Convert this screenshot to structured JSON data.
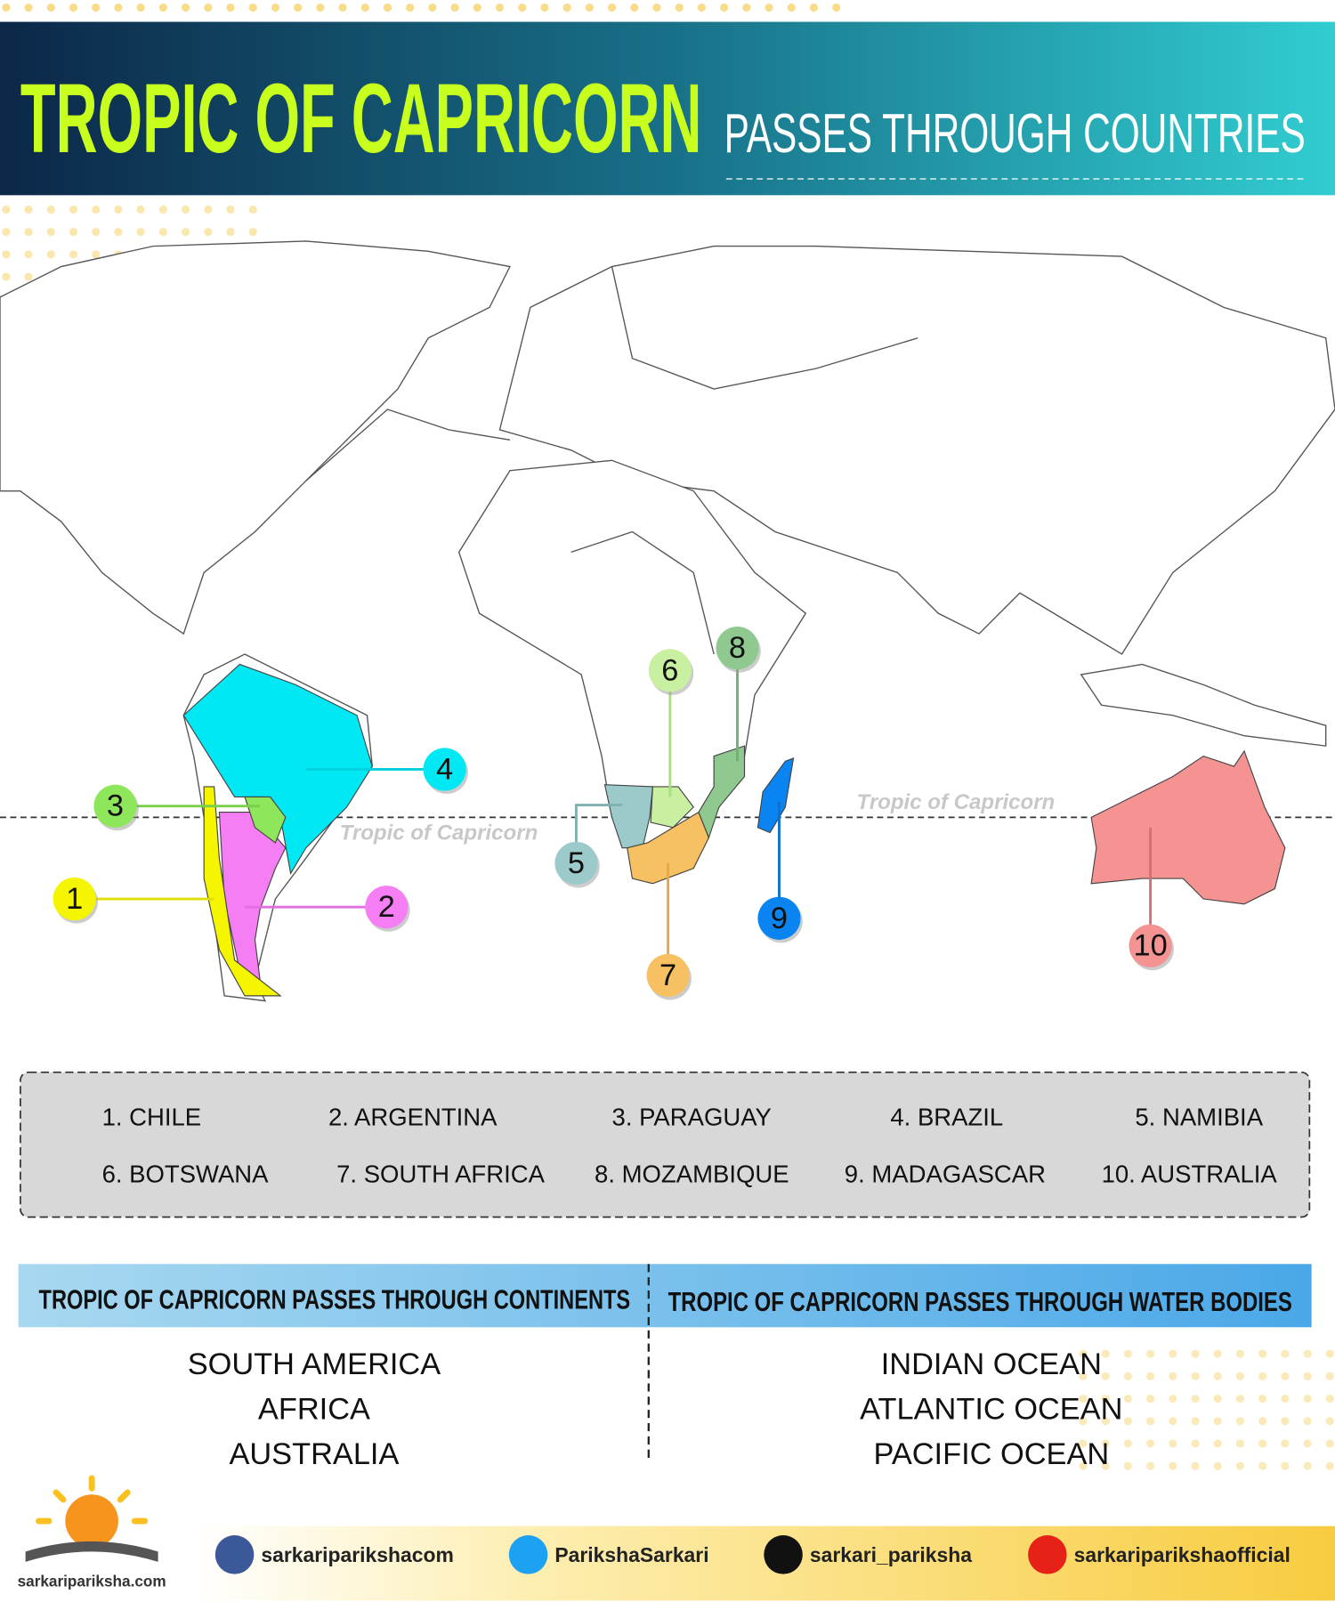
{
  "header": {
    "title": "TROPIC OF CAPRICORN",
    "subtitle": "PASSES THROUGH COUNTRIES"
  },
  "map": {
    "tropic_labels": [
      "Tropic of Capricorn",
      "Tropic of Capricorn"
    ],
    "markers": [
      "1",
      "2",
      "3",
      "4",
      "5",
      "6",
      "7",
      "8",
      "9",
      "10"
    ]
  },
  "countries": [
    "1. CHILE",
    "2. ARGENTINA",
    "3. PARAGUAY",
    "4. BRAZIL",
    "5. NAMIBIA",
    "6. BOTSWANA",
    "7. SOUTH AFRICA",
    "8. MOZAMBIQUE",
    "9. MADAGASCAR",
    "10. AUSTRALIA"
  ],
  "continents": {
    "heading": "TROPIC OF CAPRICORN PASSES THROUGH CONTINENTS",
    "items": [
      "SOUTH AMERICA",
      "AFRICA",
      "AUSTRALIA"
    ]
  },
  "water_bodies": {
    "heading": "TROPIC OF CAPRICORN  PASSES THROUGH WATER BODIES",
    "items": [
      "INDIAN OCEAN",
      "ATLANTIC OCEAN",
      "PACIFIC OCEAN"
    ]
  },
  "footer": {
    "website": "sarkaripariksha.com",
    "social": [
      "sarkariparikshacom",
      "ParikshaSarkari",
      "sarkari_pariksha",
      "sarkariparikshaofficial"
    ]
  }
}
